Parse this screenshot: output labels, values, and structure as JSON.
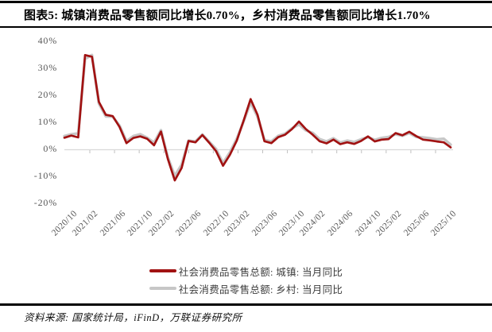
{
  "figure": {
    "title": "图表5: 城镇消费品零售额同比增长0.70%，乡村消费品零售额同比增长1.70%",
    "source": "资料来源: 国家统计局，iFinD，万联证券研究所"
  },
  "chart_data": {
    "type": "line",
    "title": "",
    "xlabel": "",
    "ylabel": "",
    "y_unit": "%",
    "ylim": [
      -20,
      40
    ],
    "grid": false,
    "legend_position": "bottom",
    "x": [
      "2020/10",
      "2020/11",
      "2020/12",
      "2021/02",
      "2021/03",
      "2021/04",
      "2021/05",
      "2021/06",
      "2021/07",
      "2021/08",
      "2021/09",
      "2021/10",
      "2021/11",
      "2021/12",
      "2022/02",
      "2022/03",
      "2022/04",
      "2022/05",
      "2022/06",
      "2022/07",
      "2022/08",
      "2022/09",
      "2022/10",
      "2022/11",
      "2022/12",
      "2023/02",
      "2023/03",
      "2023/04",
      "2023/05",
      "2023/06",
      "2023/07",
      "2023/08",
      "2023/09",
      "2023/10",
      "2023/11",
      "2023/12",
      "2024/02",
      "2024/03",
      "2024/04",
      "2024/05",
      "2024/06",
      "2024/07",
      "2024/08",
      "2024/09",
      "2024/10",
      "2024/11",
      "2024/12",
      "2025/02",
      "2025/03",
      "2025/04",
      "2025/05",
      "2025/06",
      "2025/07",
      "2025/08",
      "2025/09",
      "2025/10",
      "2025/11"
    ],
    "x_ticks": [
      "2020/10",
      "2021/02",
      "2021/06",
      "2021/10",
      "2022/02",
      "2022/06",
      "2022/10",
      "2023/02",
      "2023/06",
      "2023/10",
      "2024/02",
      "2024/06",
      "2024/10",
      "2025/02",
      "2025/06",
      "2025/10"
    ],
    "y_ticks": [
      40,
      30,
      20,
      10,
      0,
      -10,
      -20
    ],
    "series": [
      {
        "name": "社会消费品零售总额: 城镇: 当月同比",
        "color": "#A11212",
        "values": [
          4.3,
          5.1,
          4.4,
          34.9,
          34.3,
          17.6,
          12.8,
          12.3,
          8.3,
          2.3,
          4.2,
          4.8,
          3.9,
          1.5,
          6.6,
          -3.6,
          -11.5,
          -6.9,
          3.1,
          2.6,
          5.3,
          2.4,
          -0.7,
          -6.1,
          -2.0,
          3.3,
          10.7,
          18.6,
          12.8,
          3.0,
          2.3,
          4.5,
          5.4,
          7.5,
          10.3,
          7.5,
          5.4,
          3.0,
          2.2,
          3.6,
          1.9,
          2.6,
          2.0,
          3.1,
          4.8,
          2.9,
          3.6,
          3.8,
          6.0,
          5.2,
          6.5,
          4.9,
          3.6,
          3.3,
          2.9,
          2.6,
          0.7
        ]
      },
      {
        "name": "社会消费品零售总额: 乡村: 当月同比",
        "color": "#C7C7C7",
        "values": [
          4.9,
          5.6,
          5.9,
          33.5,
          34.9,
          16.9,
          12.2,
          12.1,
          8.8,
          3.0,
          4.9,
          5.6,
          4.3,
          2.5,
          7.1,
          -3.0,
          -9.8,
          -5.7,
          3.2,
          2.9,
          5.5,
          2.8,
          0.1,
          -5.1,
          -1.1,
          4.0,
          10.4,
          17.3,
          12.1,
          3.5,
          2.9,
          5.0,
          5.8,
          7.8,
          9.2,
          7.0,
          6.1,
          3.8,
          2.9,
          4.1,
          2.5,
          3.2,
          2.7,
          3.7,
          4.5,
          3.5,
          4.2,
          4.6,
          5.6,
          5.0,
          6.0,
          4.6,
          4.4,
          4.1,
          3.7,
          3.9,
          1.7
        ]
      }
    ],
    "latest": {
      "urban_pct": 0.7,
      "rural_pct": 1.7
    }
  },
  "colors": {
    "axis_line": "#D9D9D9",
    "tick_mark": "#C0C0C0",
    "tick_label": "#595959",
    "border": "#000000"
  }
}
